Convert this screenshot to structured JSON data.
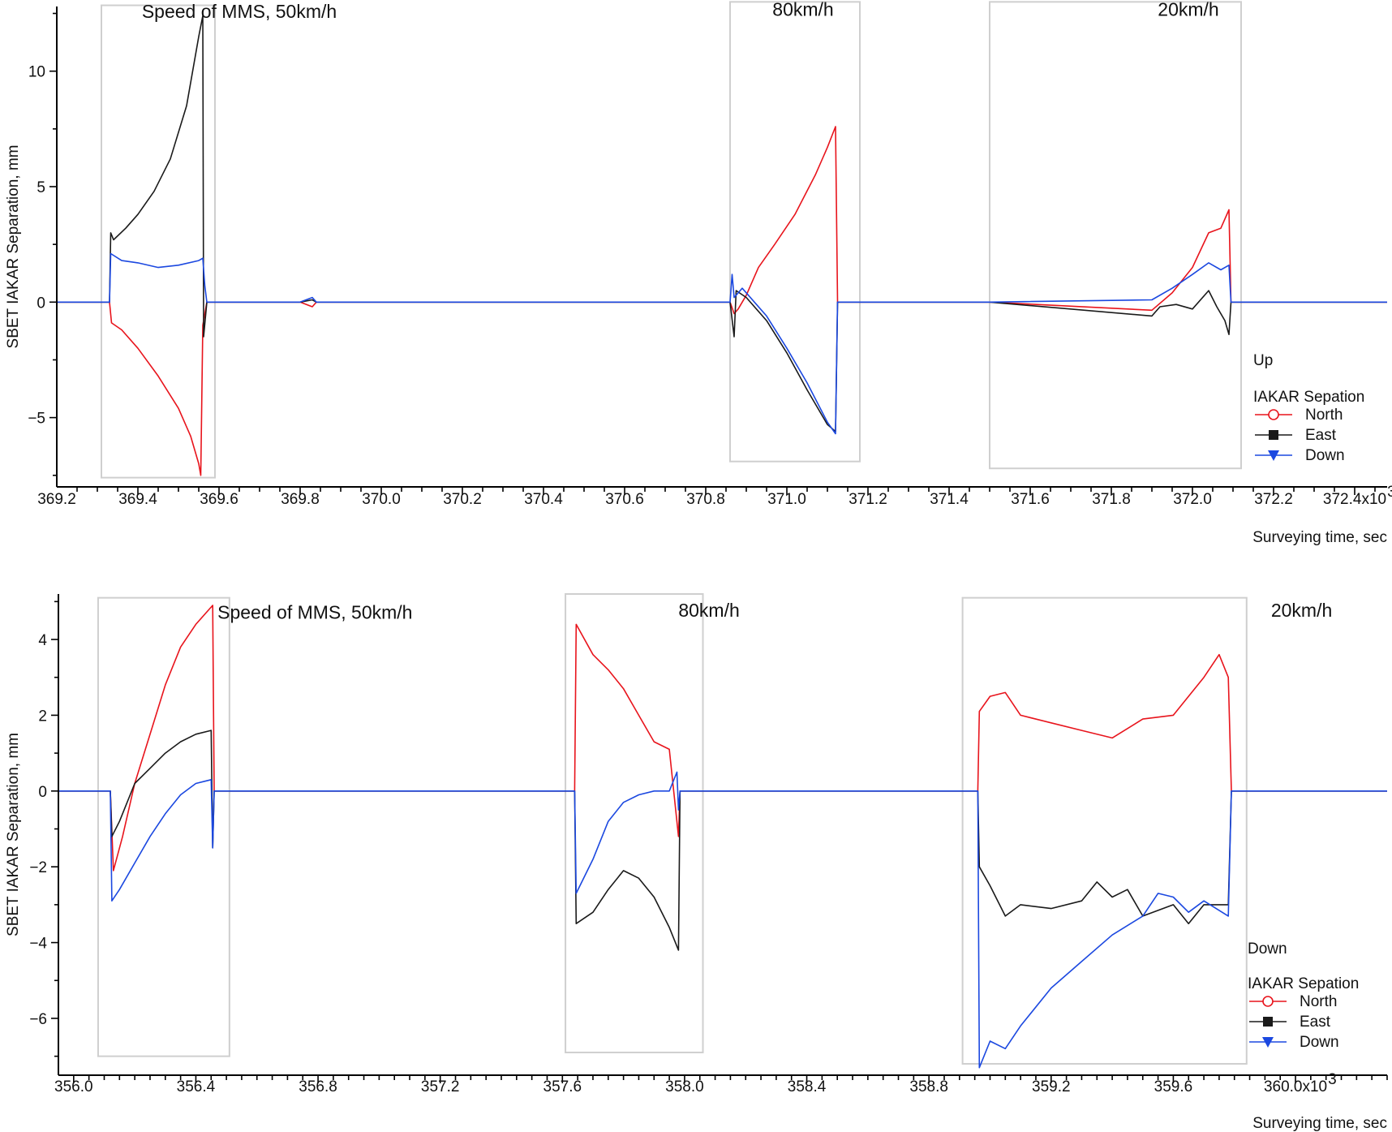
{
  "chart_data": [
    {
      "type": "line",
      "ylabel": "SBET IAKAR Separation, mm",
      "xlabel": "Surveying time, sec",
      "x_multiplier": "x10",
      "x_multiplier_exp": "3",
      "xlim": [
        369.2,
        372.48
      ],
      "ylim": [
        -8.0,
        12.8
      ],
      "x_ticks": [
        369.2,
        369.4,
        369.6,
        369.8,
        370.0,
        370.2,
        370.4,
        370.6,
        370.8,
        371.0,
        371.2,
        371.4,
        371.6,
        371.8,
        372.0,
        372.2,
        372.4
      ],
      "x_tick_labels": [
        "369.2",
        "369.4",
        "369.6",
        "369.8",
        "370.0",
        "370.2",
        "370.4",
        "370.6",
        "370.8",
        "371.0",
        "371.2",
        "371.4",
        "371.6",
        "371.8",
        "372.0",
        "372.2",
        "372.4x10"
      ],
      "y_ticks": [
        -5,
        0,
        5,
        10
      ],
      "y_tick_labels": [
        "−5",
        "0",
        "5",
        "10"
      ],
      "annotations": [
        {
          "text": "Speed of MMS, 50km/h",
          "x": 369.65,
          "y": 12.3
        },
        {
          "text": "80km/h",
          "x": 371.04,
          "y": 12.4
        },
        {
          "text": "20km/h",
          "x": 371.99,
          "y": 12.4
        }
      ],
      "boxes": [
        {
          "x": [
            369.31,
            369.59
          ],
          "y": [
            -7.6,
            12.85
          ]
        },
        {
          "x": [
            370.86,
            371.18
          ],
          "y": [
            -6.9,
            13.0
          ]
        },
        {
          "x": [
            371.5,
            372.12
          ],
          "y": [
            -7.2,
            13.0
          ]
        }
      ],
      "legend": {
        "heading": "Up",
        "title": "IAKAR Sepation",
        "placement": "right"
      },
      "series": [
        {
          "name": "North",
          "color": "#e8141c",
          "marker": "open-circle",
          "points": [
            [
              369.2,
              0
            ],
            [
              369.33,
              0
            ],
            [
              369.335,
              -0.9
            ],
            [
              369.36,
              -1.2
            ],
            [
              369.4,
              -2.0
            ],
            [
              369.45,
              -3.2
            ],
            [
              369.5,
              -4.6
            ],
            [
              369.53,
              -5.8
            ],
            [
              369.55,
              -7.0
            ],
            [
              369.555,
              -7.5
            ],
            [
              369.56,
              -1.0
            ],
            [
              369.57,
              0
            ],
            [
              369.8,
              0
            ],
            [
              369.83,
              -0.2
            ],
            [
              369.84,
              0
            ],
            [
              370.86,
              0
            ],
            [
              370.87,
              -0.5
            ],
            [
              370.88,
              -0.3
            ],
            [
              370.9,
              0.3
            ],
            [
              370.93,
              1.5
            ],
            [
              370.97,
              2.5
            ],
            [
              371.02,
              3.8
            ],
            [
              371.07,
              5.5
            ],
            [
              371.1,
              6.7
            ],
            [
              371.12,
              7.6
            ],
            [
              371.125,
              0
            ],
            [
              371.5,
              0
            ],
            [
              371.9,
              -0.35
            ],
            [
              371.95,
              0.4
            ],
            [
              372.0,
              1.5
            ],
            [
              372.04,
              3.0
            ],
            [
              372.07,
              3.2
            ],
            [
              372.09,
              4.0
            ],
            [
              372.095,
              0
            ],
            [
              372.48,
              0
            ]
          ]
        },
        {
          "name": "East",
          "color": "#1a1a1a",
          "marker": "filled-square",
          "points": [
            [
              369.2,
              0
            ],
            [
              369.33,
              0
            ],
            [
              369.333,
              3.0
            ],
            [
              369.34,
              2.7
            ],
            [
              369.37,
              3.2
            ],
            [
              369.4,
              3.8
            ],
            [
              369.44,
              4.8
            ],
            [
              369.48,
              6.2
            ],
            [
              369.52,
              8.5
            ],
            [
              369.55,
              11.5
            ],
            [
              369.56,
              12.4
            ],
            [
              369.562,
              -1.5
            ],
            [
              369.57,
              0
            ],
            [
              369.8,
              0
            ],
            [
              369.83,
              0.1
            ],
            [
              369.84,
              0
            ],
            [
              370.86,
              0
            ],
            [
              370.87,
              -1.5
            ],
            [
              370.875,
              0.5
            ],
            [
              370.9,
              0.2
            ],
            [
              370.95,
              -0.8
            ],
            [
              371.0,
              -2.2
            ],
            [
              371.05,
              -3.8
            ],
            [
              371.1,
              -5.3
            ],
            [
              371.12,
              -5.6
            ],
            [
              371.125,
              0
            ],
            [
              371.5,
              0
            ],
            [
              371.9,
              -0.6
            ],
            [
              371.92,
              -0.2
            ],
            [
              371.96,
              -0.1
            ],
            [
              372.0,
              -0.3
            ],
            [
              372.04,
              0.5
            ],
            [
              372.06,
              -0.2
            ],
            [
              372.08,
              -0.8
            ],
            [
              372.09,
              -1.4
            ],
            [
              372.095,
              0
            ],
            [
              372.48,
              0
            ]
          ]
        },
        {
          "name": "Down",
          "color": "#1b48e0",
          "marker": "filled-triangle-down",
          "points": [
            [
              369.2,
              0
            ],
            [
              369.33,
              0
            ],
            [
              369.333,
              2.1
            ],
            [
              369.36,
              1.8
            ],
            [
              369.4,
              1.7
            ],
            [
              369.45,
              1.5
            ],
            [
              369.5,
              1.6
            ],
            [
              369.55,
              1.8
            ],
            [
              369.56,
              1.9
            ],
            [
              369.565,
              0.7
            ],
            [
              369.57,
              0
            ],
            [
              369.8,
              0
            ],
            [
              369.83,
              0.2
            ],
            [
              369.84,
              0
            ],
            [
              370.86,
              0
            ],
            [
              370.865,
              1.2
            ],
            [
              370.87,
              0.2
            ],
            [
              370.89,
              0.6
            ],
            [
              370.95,
              -0.6
            ],
            [
              371.0,
              -2.0
            ],
            [
              371.05,
              -3.5
            ],
            [
              371.1,
              -5.2
            ],
            [
              371.12,
              -5.7
            ],
            [
              371.125,
              0
            ],
            [
              371.5,
              0
            ],
            [
              371.9,
              0.1
            ],
            [
              371.95,
              0.6
            ],
            [
              372.0,
              1.2
            ],
            [
              372.04,
              1.7
            ],
            [
              372.07,
              1.4
            ],
            [
              372.09,
              1.6
            ],
            [
              372.095,
              0
            ],
            [
              372.48,
              0
            ]
          ]
        }
      ]
    },
    {
      "type": "line",
      "ylabel": "SBET IAKAR Separation, mm",
      "xlabel": "Surveying time, sec",
      "x_multiplier": "x10",
      "x_multiplier_exp": "3",
      "xlim": [
        355.95,
        360.3
      ],
      "ylim": [
        -7.5,
        5.2
      ],
      "x_ticks": [
        356.0,
        356.4,
        356.8,
        357.2,
        357.6,
        358.0,
        358.4,
        358.8,
        359.2,
        359.6,
        360.0
      ],
      "x_tick_labels": [
        "356.0",
        "356.4",
        "356.8",
        "357.2",
        "357.6",
        "358.0",
        "358.4",
        "358.8",
        "359.2",
        "359.6",
        "360.0x10"
      ],
      "y_ticks": [
        -6,
        -4,
        -2,
        0,
        2,
        4
      ],
      "y_tick_labels": [
        "−6",
        "−4",
        "−2",
        "0",
        "2",
        "4"
      ],
      "annotations": [
        {
          "text": "Speed of MMS, 50km/h",
          "x": 356.79,
          "y": 4.55
        },
        {
          "text": "80km/h",
          "x": 358.08,
          "y": 4.6
        },
        {
          "text": "20km/h",
          "x": 360.02,
          "y": 4.6
        }
      ],
      "boxes": [
        {
          "x": [
            356.08,
            356.51
          ],
          "y": [
            -7.0,
            5.1
          ]
        },
        {
          "x": [
            357.61,
            358.06
          ],
          "y": [
            -6.9,
            5.2
          ]
        },
        {
          "x": [
            358.91,
            359.84
          ],
          "y": [
            -7.2,
            5.1
          ]
        }
      ],
      "legend": {
        "heading": "Down",
        "title": "IAKAR Sepation",
        "placement": "right"
      },
      "series": [
        {
          "name": "North",
          "color": "#e8141c",
          "marker": "open-circle",
          "points": [
            [
              355.95,
              0
            ],
            [
              356.12,
              0
            ],
            [
              356.13,
              -2.1
            ],
            [
              356.16,
              -1.2
            ],
            [
              356.2,
              0.2
            ],
            [
              356.25,
              1.5
            ],
            [
              356.3,
              2.8
            ],
            [
              356.35,
              3.8
            ],
            [
              356.4,
              4.4
            ],
            [
              356.455,
              4.9
            ],
            [
              356.46,
              0
            ],
            [
              357.64,
              0
            ],
            [
              357.645,
              4.4
            ],
            [
              357.7,
              3.6
            ],
            [
              357.75,
              3.2
            ],
            [
              357.8,
              2.7
            ],
            [
              357.85,
              2.0
            ],
            [
              357.9,
              1.3
            ],
            [
              357.95,
              1.1
            ],
            [
              357.98,
              -1.2
            ],
            [
              357.985,
              0
            ],
            [
              358.96,
              0
            ],
            [
              358.965,
              2.1
            ],
            [
              359.0,
              2.5
            ],
            [
              359.05,
              2.6
            ],
            [
              359.1,
              2.0
            ],
            [
              359.2,
              1.8
            ],
            [
              359.3,
              1.6
            ],
            [
              359.4,
              1.4
            ],
            [
              359.5,
              1.9
            ],
            [
              359.6,
              2.0
            ],
            [
              359.65,
              2.5
            ],
            [
              359.7,
              3.0
            ],
            [
              359.75,
              3.6
            ],
            [
              359.78,
              3.0
            ],
            [
              359.79,
              0
            ],
            [
              360.3,
              0
            ]
          ]
        },
        {
          "name": "East",
          "color": "#1a1a1a",
          "marker": "filled-square",
          "points": [
            [
              355.95,
              0
            ],
            [
              356.12,
              0
            ],
            [
              356.125,
              -1.2
            ],
            [
              356.15,
              -0.8
            ],
            [
              356.2,
              0.2
            ],
            [
              356.25,
              0.6
            ],
            [
              356.3,
              1.0
            ],
            [
              356.35,
              1.3
            ],
            [
              356.4,
              1.5
            ],
            [
              356.45,
              1.6
            ],
            [
              356.455,
              -1.5
            ],
            [
              356.46,
              0
            ],
            [
              357.64,
              0
            ],
            [
              357.645,
              -3.5
            ],
            [
              357.7,
              -3.2
            ],
            [
              357.75,
              -2.6
            ],
            [
              357.8,
              -2.1
            ],
            [
              357.85,
              -2.3
            ],
            [
              357.9,
              -2.8
            ],
            [
              357.95,
              -3.6
            ],
            [
              357.98,
              -4.2
            ],
            [
              357.985,
              0
            ],
            [
              358.96,
              0
            ],
            [
              358.965,
              -2.0
            ],
            [
              359.0,
              -2.5
            ],
            [
              359.05,
              -3.3
            ],
            [
              359.1,
              -3.0
            ],
            [
              359.2,
              -3.1
            ],
            [
              359.3,
              -2.9
            ],
            [
              359.35,
              -2.4
            ],
            [
              359.4,
              -2.8
            ],
            [
              359.45,
              -2.6
            ],
            [
              359.5,
              -3.3
            ],
            [
              359.6,
              -3.0
            ],
            [
              359.65,
              -3.5
            ],
            [
              359.7,
              -3.0
            ],
            [
              359.78,
              -3.0
            ],
            [
              359.79,
              0
            ],
            [
              360.3,
              0
            ]
          ]
        },
        {
          "name": "Down",
          "color": "#1b48e0",
          "marker": "filled-triangle-down",
          "points": [
            [
              355.95,
              0
            ],
            [
              356.12,
              0
            ],
            [
              356.125,
              -2.9
            ],
            [
              356.15,
              -2.6
            ],
            [
              356.2,
              -1.9
            ],
            [
              356.25,
              -1.2
            ],
            [
              356.3,
              -0.6
            ],
            [
              356.35,
              -0.1
            ],
            [
              356.4,
              0.2
            ],
            [
              356.45,
              0.3
            ],
            [
              356.455,
              -1.5
            ],
            [
              356.46,
              0
            ],
            [
              357.64,
              0
            ],
            [
              357.645,
              -2.7
            ],
            [
              357.7,
              -1.8
            ],
            [
              357.75,
              -0.8
            ],
            [
              357.8,
              -0.3
            ],
            [
              357.85,
              -0.1
            ],
            [
              357.9,
              0
            ],
            [
              357.95,
              0
            ],
            [
              357.975,
              0.5
            ],
            [
              357.98,
              -0.5
            ],
            [
              357.985,
              0
            ],
            [
              358.96,
              0
            ],
            [
              358.965,
              -7.3
            ],
            [
              359.0,
              -6.6
            ],
            [
              359.05,
              -6.8
            ],
            [
              359.1,
              -6.2
            ],
            [
              359.2,
              -5.2
            ],
            [
              359.3,
              -4.5
            ],
            [
              359.4,
              -3.8
            ],
            [
              359.5,
              -3.3
            ],
            [
              359.55,
              -2.7
            ],
            [
              359.6,
              -2.8
            ],
            [
              359.65,
              -3.2
            ],
            [
              359.7,
              -2.9
            ],
            [
              359.78,
              -3.3
            ],
            [
              359.79,
              0
            ],
            [
              360.3,
              0
            ]
          ]
        }
      ]
    }
  ]
}
